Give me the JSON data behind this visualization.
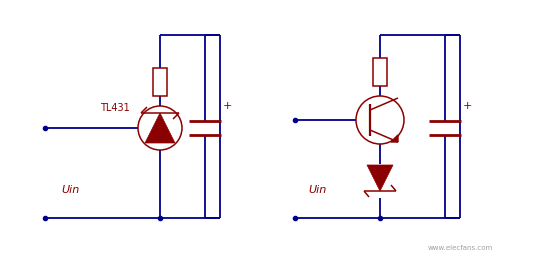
{
  "bg_color": "#ffffff",
  "wire_color": "#00008B",
  "component_color": "#8B0000",
  "label_color": "#8B0000",
  "fig_width": 5.43,
  "fig_height": 2.6,
  "dpi": 100,
  "circuit1_label": "TL431",
  "uin_label": "Uin",
  "plus_label": "+",
  "watermark": "www.elecfans.com"
}
